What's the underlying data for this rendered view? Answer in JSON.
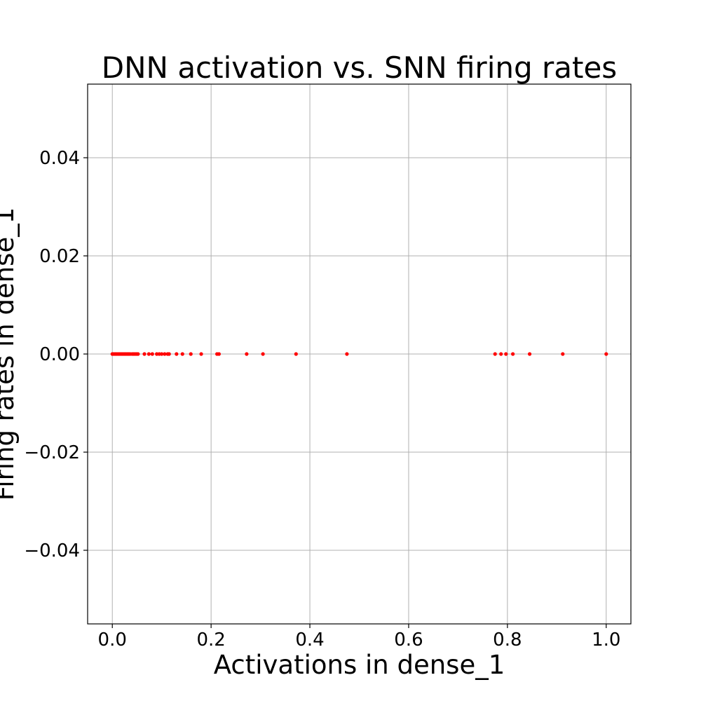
{
  "chart_data": {
    "type": "scatter",
    "title": "DNN activation vs. SNN firing rates",
    "xlabel": "Activations in dense_1",
    "ylabel": "Firing rates in dense_1",
    "xlim": [
      -0.05,
      1.05
    ],
    "ylim": [
      -0.055,
      0.055
    ],
    "xticks": [
      0.0,
      0.2,
      0.4,
      0.6,
      0.8,
      1.0
    ],
    "xtick_labels": [
      "0.0",
      "0.2",
      "0.4",
      "0.6",
      "0.8",
      "1.0"
    ],
    "yticks": [
      0.04,
      0.02,
      0.0,
      -0.02,
      -0.04
    ],
    "ytick_labels": [
      "0.04",
      "0.02",
      "0.00",
      "−0.02",
      "−0.04"
    ],
    "grid": true,
    "color": "#ff0000",
    "series": [
      {
        "x": [
          0.0,
          0.003,
          0.006,
          0.009,
          0.012,
          0.015,
          0.018,
          0.021,
          0.024,
          0.027,
          0.03,
          0.033,
          0.036,
          0.04,
          0.043,
          0.046,
          0.049,
          0.052,
          0.065,
          0.074,
          0.081,
          0.09,
          0.095,
          0.1,
          0.106,
          0.112,
          0.115,
          0.13,
          0.142,
          0.159,
          0.18,
          0.212,
          0.216,
          0.272,
          0.305,
          0.372,
          0.475,
          0.775,
          0.787,
          0.797,
          0.811,
          0.845,
          0.912,
          1.0
        ],
        "y": [
          0,
          0,
          0,
          0,
          0,
          0,
          0,
          0,
          0,
          0,
          0,
          0,
          0,
          0,
          0,
          0,
          0,
          0,
          0,
          0,
          0,
          0,
          0,
          0,
          0,
          0,
          0,
          0,
          0,
          0,
          0,
          0,
          0,
          0,
          0,
          0,
          0,
          0,
          0,
          0,
          0,
          0,
          0,
          0
        ]
      }
    ]
  }
}
